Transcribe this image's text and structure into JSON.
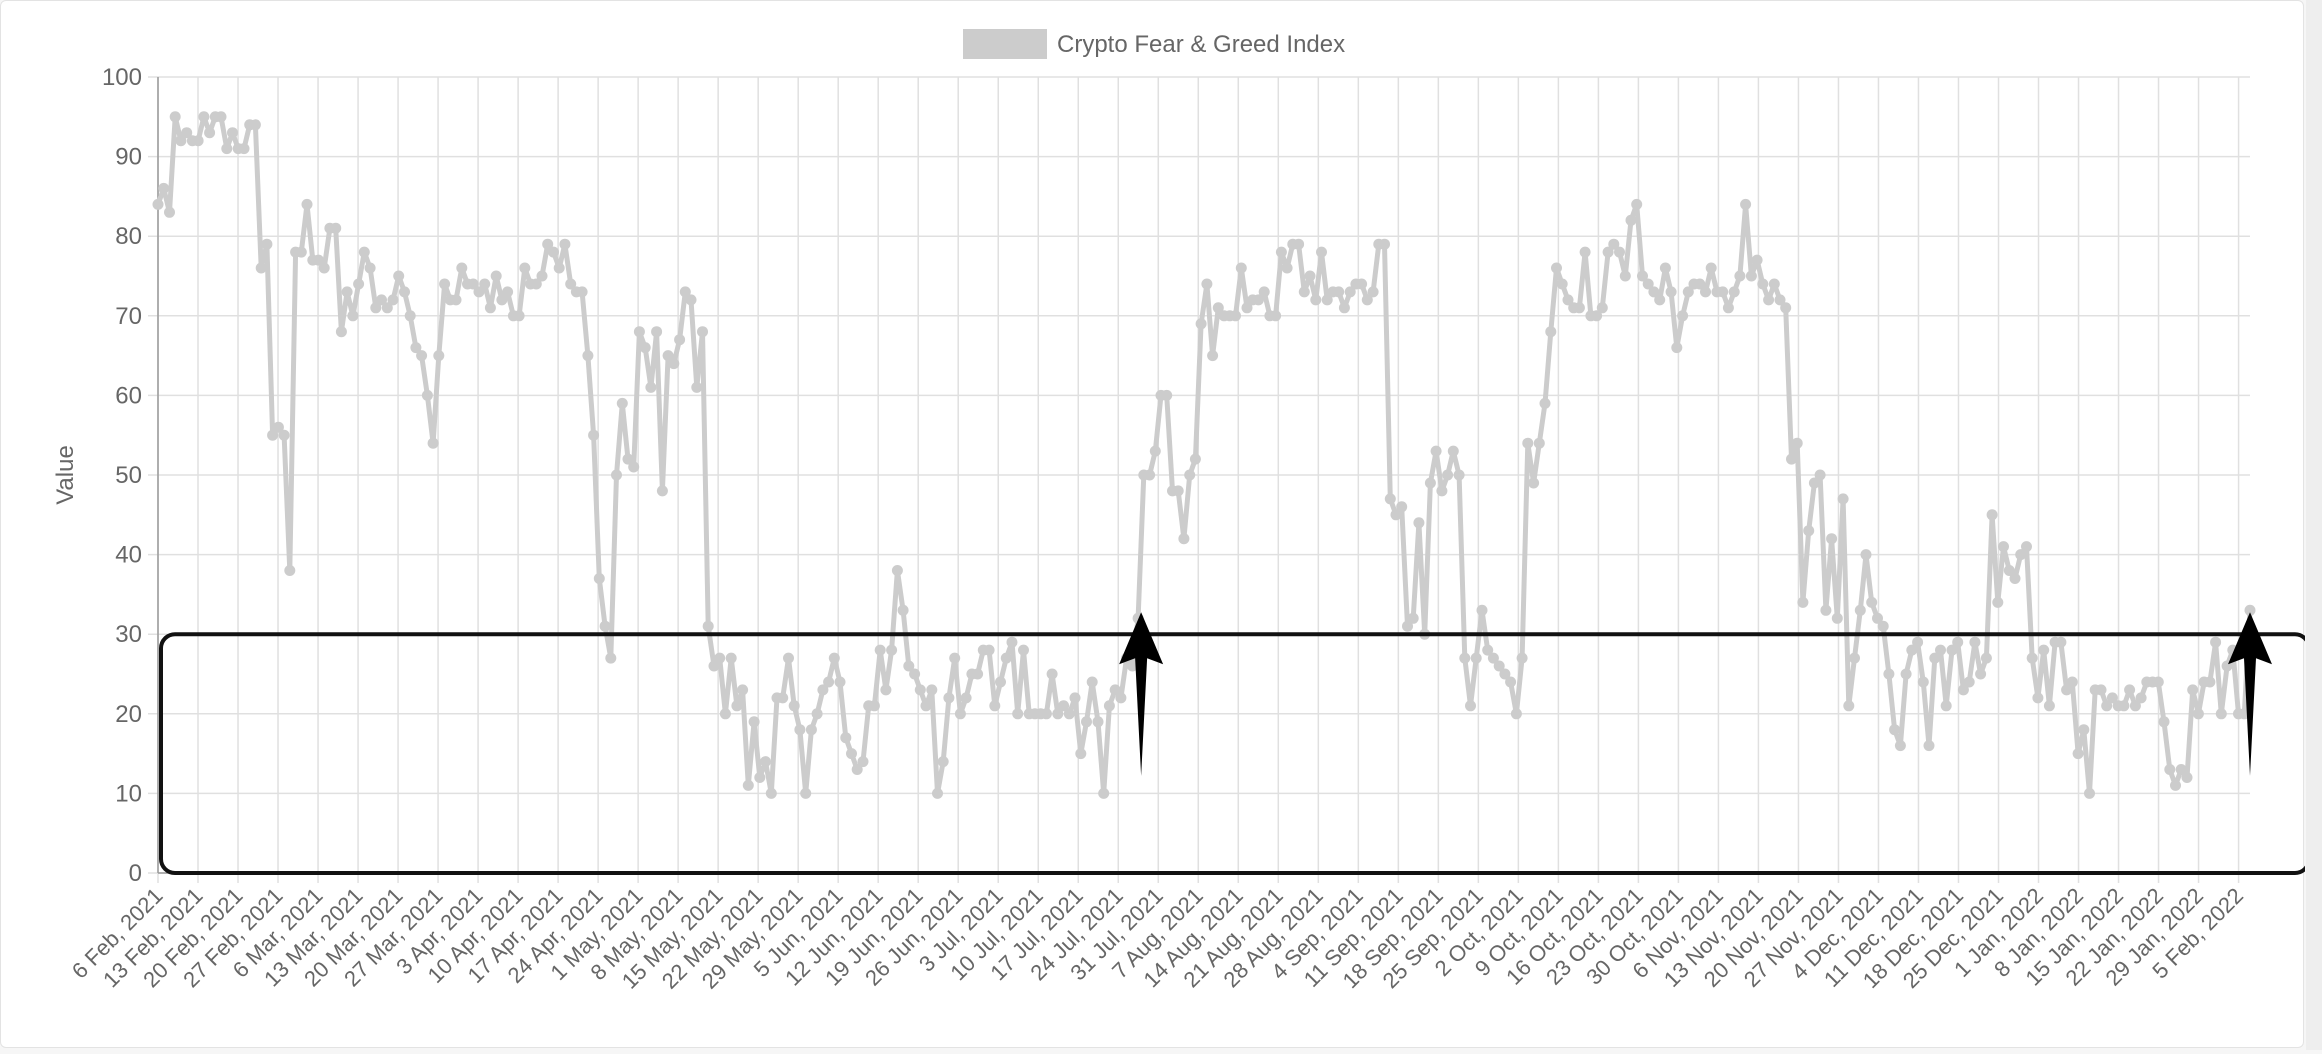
{
  "chart_data": {
    "type": "line",
    "legend": {
      "label": "Crypto Fear & Greed Index",
      "placement": "top",
      "color": "#cccccc"
    },
    "ylabel": "Value",
    "xlabel": "",
    "ylim": [
      0,
      100
    ],
    "y_ticks": [
      0,
      10,
      20,
      30,
      40,
      50,
      60,
      70,
      80,
      90,
      100
    ],
    "grid": true,
    "x_start_date": "2021-02-06",
    "x_end_date": "2022-02-07",
    "x_ticks": [
      {
        "date": "2021-02-06",
        "label": "6 Feb, 2021"
      },
      {
        "date": "2021-02-13",
        "label": "13 Feb, 2021"
      },
      {
        "date": "2021-02-20",
        "label": "20 Feb, 2021"
      },
      {
        "date": "2021-02-27",
        "label": "27 Feb, 2021"
      },
      {
        "date": "2021-03-06",
        "label": "6 Mar, 2021"
      },
      {
        "date": "2021-03-13",
        "label": "13 Mar, 2021"
      },
      {
        "date": "2021-03-20",
        "label": "20 Mar, 2021"
      },
      {
        "date": "2021-03-27",
        "label": "27 Mar, 2021"
      },
      {
        "date": "2021-04-03",
        "label": "3 Apr, 2021"
      },
      {
        "date": "2021-04-10",
        "label": "10 Apr, 2021"
      },
      {
        "date": "2021-04-17",
        "label": "17 Apr, 2021"
      },
      {
        "date": "2021-04-24",
        "label": "24 Apr, 2021"
      },
      {
        "date": "2021-05-01",
        "label": "1 May, 2021"
      },
      {
        "date": "2021-05-08",
        "label": "8 May, 2021"
      },
      {
        "date": "2021-05-15",
        "label": "15 May, 2021"
      },
      {
        "date": "2021-05-22",
        "label": "22 May, 2021"
      },
      {
        "date": "2021-05-29",
        "label": "29 May, 2021"
      },
      {
        "date": "2021-06-05",
        "label": "5 Jun, 2021"
      },
      {
        "date": "2021-06-12",
        "label": "12 Jun, 2021"
      },
      {
        "date": "2021-06-19",
        "label": "19 Jun, 2021"
      },
      {
        "date": "2021-06-26",
        "label": "26 Jun, 2021"
      },
      {
        "date": "2021-07-03",
        "label": "3 Jul, 2021"
      },
      {
        "date": "2021-07-10",
        "label": "10 Jul, 2021"
      },
      {
        "date": "2021-07-17",
        "label": "17 Jul, 2021"
      },
      {
        "date": "2021-07-24",
        "label": "24 Jul, 2021"
      },
      {
        "date": "2021-07-31",
        "label": "31 Jul, 2021"
      },
      {
        "date": "2021-08-07",
        "label": "7 Aug, 2021"
      },
      {
        "date": "2021-08-14",
        "label": "14 Aug, 2021"
      },
      {
        "date": "2021-08-21",
        "label": "21 Aug, 2021"
      },
      {
        "date": "2021-08-28",
        "label": "28 Aug, 2021"
      },
      {
        "date": "2021-09-04",
        "label": "4 Sep, 2021"
      },
      {
        "date": "2021-09-11",
        "label": "11 Sep, 2021"
      },
      {
        "date": "2021-09-18",
        "label": "18 Sep, 2021"
      },
      {
        "date": "2021-09-25",
        "label": "25 Sep, 2021"
      },
      {
        "date": "2021-10-02",
        "label": "2 Oct, 2021"
      },
      {
        "date": "2021-10-09",
        "label": "9 Oct, 2021"
      },
      {
        "date": "2021-10-16",
        "label": "16 Oct, 2021"
      },
      {
        "date": "2021-10-23",
        "label": "23 Oct, 2021"
      },
      {
        "date": "2021-10-30",
        "label": "30 Oct, 2021"
      },
      {
        "date": "2021-11-06",
        "label": "6 Nov, 2021"
      },
      {
        "date": "2021-11-13",
        "label": "13 Nov, 2021"
      },
      {
        "date": "2021-11-20",
        "label": "20 Nov, 2021"
      },
      {
        "date": "2021-11-27",
        "label": "27 Nov, 2021"
      },
      {
        "date": "2021-12-04",
        "label": "4 Dec, 2021"
      },
      {
        "date": "2021-12-11",
        "label": "11 Dec, 2021"
      },
      {
        "date": "2021-12-18",
        "label": "18 Dec, 2021"
      },
      {
        "date": "2021-12-25",
        "label": "25 Dec, 2021"
      },
      {
        "date": "2022-01-01",
        "label": "1 Jan, 2022"
      },
      {
        "date": "2022-01-08",
        "label": "8 Jan, 2022"
      },
      {
        "date": "2022-01-15",
        "label": "15 Jan, 2022"
      },
      {
        "date": "2022-01-22",
        "label": "22 Jan, 2022"
      },
      {
        "date": "2022-01-29",
        "label": "29 Jan, 2022"
      },
      {
        "date": "2022-02-05",
        "label": "5 Feb, 2022"
      }
    ],
    "series": [
      {
        "name": "Crypto Fear & Greed Index",
        "color": "#cccccc",
        "values": [
          84,
          86,
          83,
          95,
          92,
          93,
          92,
          92,
          95,
          93,
          95,
          95,
          91,
          93,
          91,
          91,
          94,
          94,
          76,
          79,
          55,
          56,
          55,
          38,
          78,
          78,
          84,
          77,
          77,
          76,
          81,
          81,
          68,
          73,
          70,
          74,
          78,
          76,
          71,
          72,
          71,
          72,
          75,
          73,
          70,
          66,
          65,
          60,
          54,
          65,
          74,
          72,
          72,
          76,
          74,
          74,
          73,
          74,
          71,
          75,
          72,
          73,
          70,
          70,
          76,
          74,
          74,
          75,
          79,
          78,
          76,
          79,
          74,
          73,
          73,
          65,
          55,
          37,
          31,
          27,
          50,
          59,
          52,
          51,
          68,
          66,
          61,
          68,
          48,
          65,
          64,
          67,
          73,
          72,
          61,
          68,
          31,
          26,
          27,
          20,
          27,
          21,
          23,
          11,
          19,
          12,
          14,
          10,
          22,
          22,
          27,
          21,
          18,
          10,
          18,
          20,
          23,
          24,
          27,
          24,
          17,
          15,
          13,
          14,
          21,
          21,
          28,
          23,
          28,
          38,
          33,
          26,
          25,
          23,
          21,
          23,
          10,
          14,
          22,
          27,
          20,
          22,
          25,
          25,
          28,
          28,
          21,
          24,
          27,
          29,
          20,
          28,
          20,
          20,
          20,
          20,
          25,
          20,
          21,
          20,
          22,
          15,
          19,
          24,
          19,
          10,
          21,
          23,
          22,
          27,
          26,
          32,
          50,
          50,
          53,
          60,
          60,
          48,
          48,
          42,
          50,
          52,
          69,
          74,
          65,
          71,
          70,
          70,
          70,
          76,
          71,
          72,
          72,
          73,
          70,
          70,
          78,
          76,
          79,
          79,
          73,
          75,
          72,
          78,
          72,
          73,
          73,
          71,
          73,
          74,
          74,
          72,
          73,
          79,
          79,
          47,
          45,
          46,
          31,
          32,
          44,
          30,
          49,
          53,
          48,
          50,
          53,
          50,
          27,
          21,
          27,
          33,
          28,
          27,
          26,
          25,
          24,
          20,
          27,
          54,
          49,
          54,
          59,
          68,
          76,
          74,
          72,
          71,
          71,
          78,
          70,
          70,
          71,
          78,
          79,
          78,
          75,
          82,
          84,
          75,
          74,
          73,
          72,
          76,
          73,
          66,
          70,
          73,
          74,
          74,
          73,
          76,
          73,
          73,
          71,
          73,
          75,
          84,
          75,
          77,
          74,
          72,
          74,
          72,
          71,
          52,
          54,
          34,
          43,
          49,
          50,
          33,
          42,
          32,
          47,
          21,
          27,
          33,
          40,
          34,
          32,
          31,
          25,
          18,
          16,
          25,
          28,
          29,
          24,
          16,
          27,
          28,
          21,
          28,
          29,
          23,
          24,
          29,
          25,
          27,
          45,
          34,
          41,
          38,
          37,
          40,
          41,
          27,
          22,
          28,
          21,
          29,
          29,
          23,
          24,
          15,
          18,
          10,
          23,
          23,
          21,
          22,
          21,
          21,
          23,
          21,
          22,
          24,
          24,
          24,
          19,
          13,
          11,
          13,
          12,
          23,
          20,
          24,
          24,
          29,
          20,
          26,
          28,
          20,
          20,
          33
        ]
      }
    ]
  },
  "annotations": {
    "highlight_box": {
      "value_range": [
        0,
        30
      ],
      "color": "#111111"
    },
    "arrows": [
      {
        "date": "2021-07-28",
        "direction": "up",
        "color": "#000000"
      },
      {
        "date": "2022-02-07",
        "direction": "up",
        "color": "#000000"
      }
    ]
  },
  "colors": {
    "grid": "#e0e0e0",
    "axis": "#999999",
    "text": "#666666",
    "line": "#cccccc"
  }
}
